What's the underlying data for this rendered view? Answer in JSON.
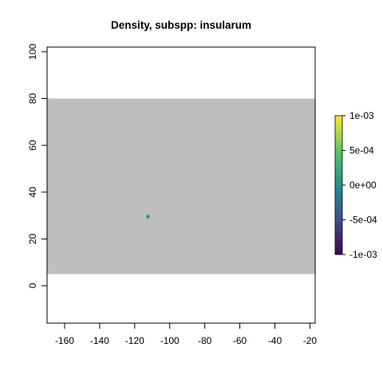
{
  "chart_data": {
    "type": "heatmap",
    "title": "Density, subspp: insularum",
    "xlabel": "",
    "ylabel": "",
    "xlim": [
      -170,
      -17
    ],
    "ylim": [
      -16,
      102
    ],
    "x_ticks": [
      -160,
      -140,
      -120,
      -100,
      -80,
      -60,
      -40,
      -20
    ],
    "y_ticks": [
      0,
      20,
      40,
      60,
      80,
      100
    ],
    "raster_extent": {
      "x": [
        -170,
        -17
      ],
      "y": [
        5,
        80
      ]
    },
    "raster_background_color": "#bebebe",
    "cells": [
      {
        "x": -112.5,
        "y": 29.5,
        "value": 0,
        "color": "#21908c"
      }
    ],
    "colorbar": {
      "min": -0.001,
      "max": 0.001,
      "tick_values": [
        0.001,
        0.0005,
        0,
        -0.0005,
        -0.001
      ],
      "tick_labels": [
        "1e-03",
        "5e-04",
        "0e+00",
        "-5e-04",
        "-1e-03"
      ],
      "palette": [
        "#440154",
        "#3b528b",
        "#21908c",
        "#5dc963",
        "#fde725"
      ]
    },
    "grid": false,
    "legend_position": "right"
  }
}
